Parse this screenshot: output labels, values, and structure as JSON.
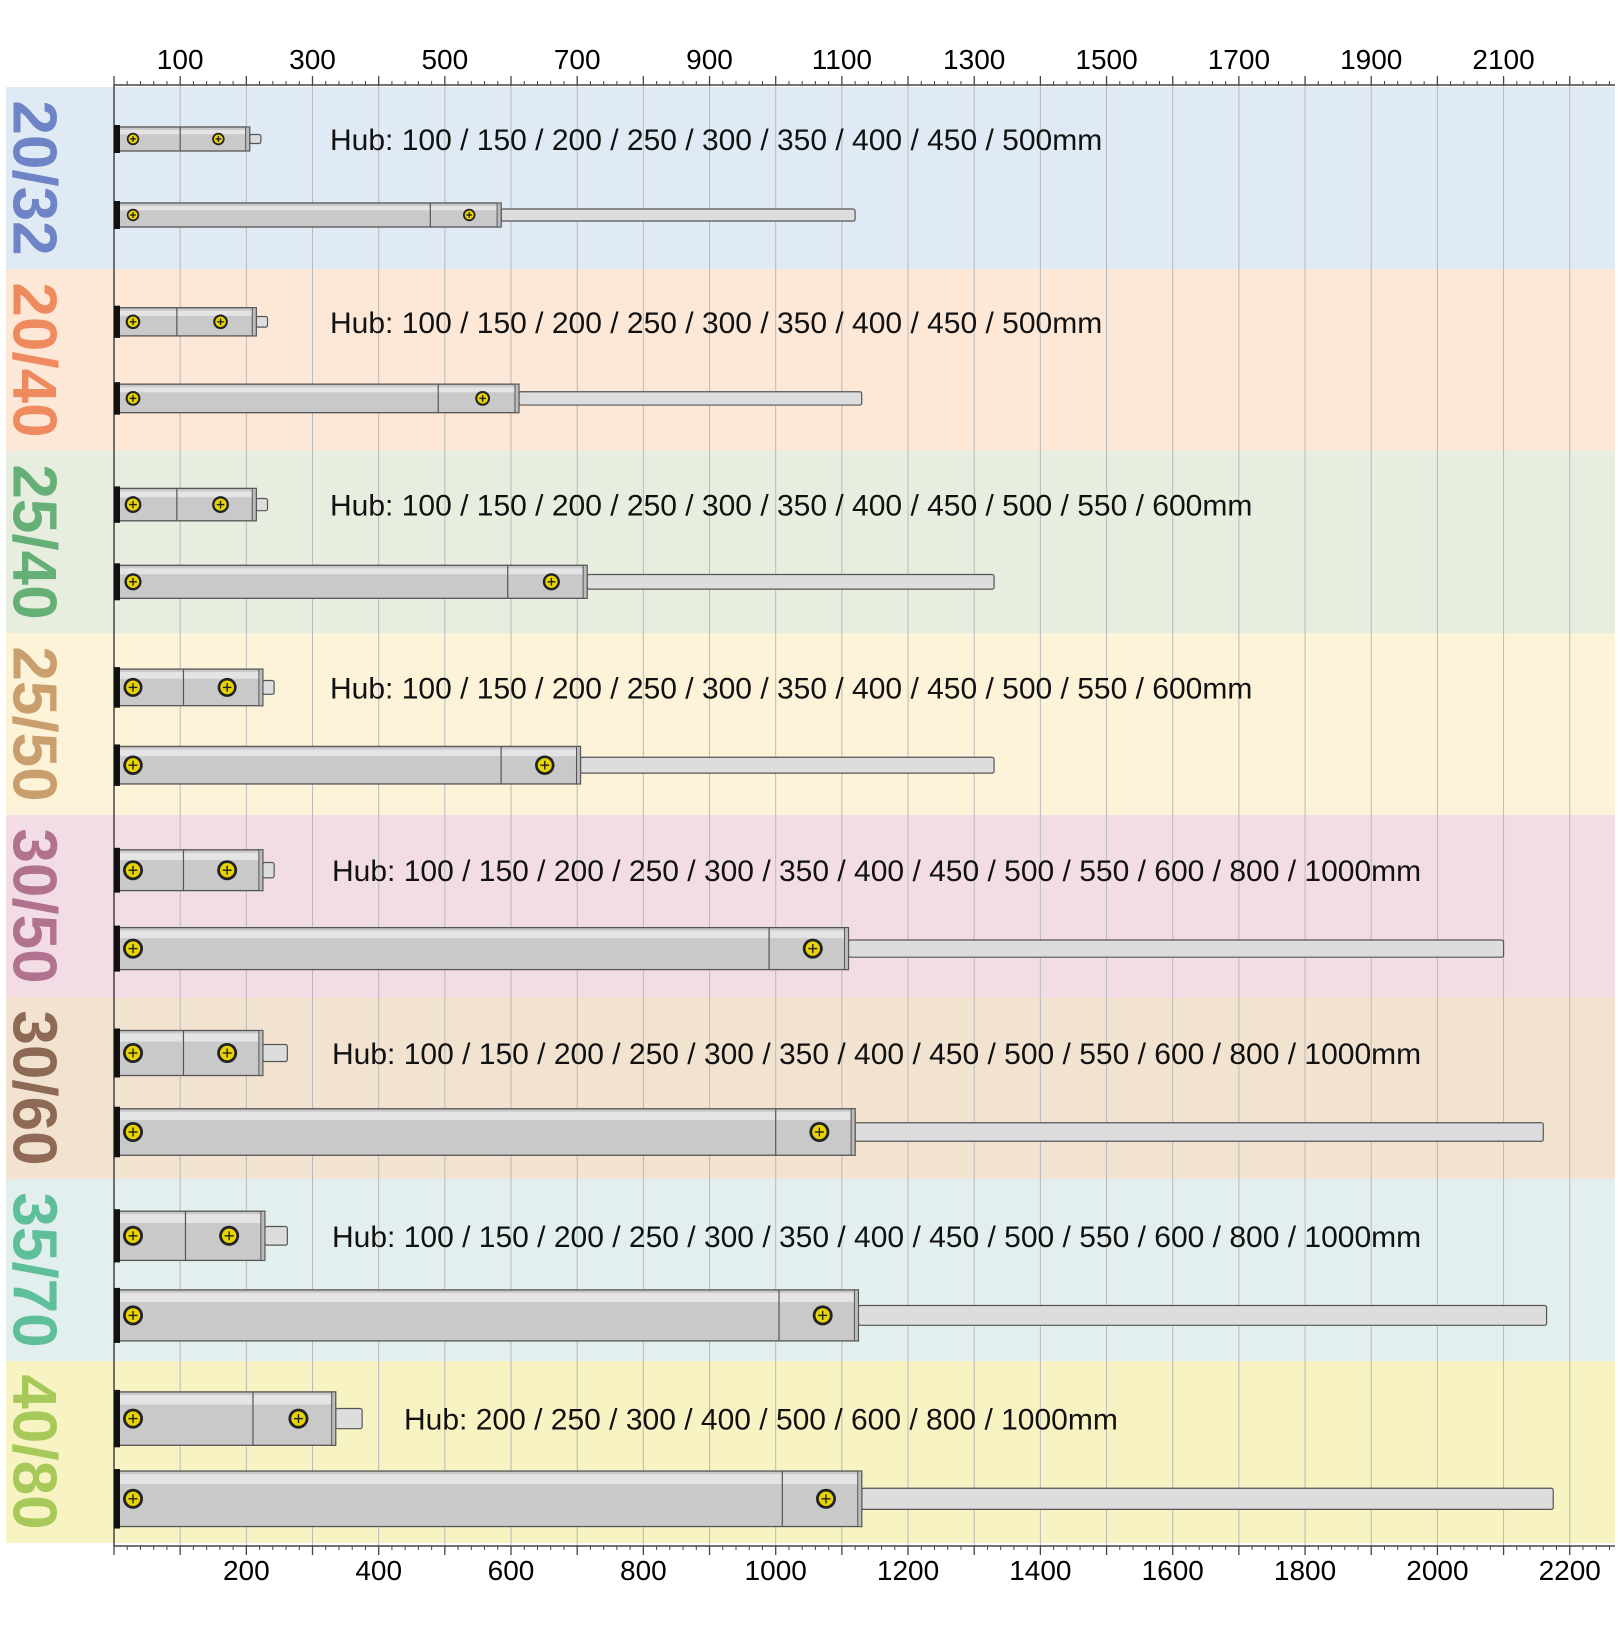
{
  "axis": {
    "unit": "mm",
    "top_ticks": [
      "100",
      "300",
      "500",
      "700",
      "900",
      "1100",
      "1300",
      "1500",
      "1700",
      "1900",
      "2100"
    ],
    "bottom_ticks": [
      "200",
      "400",
      "600",
      "800",
      "1000",
      "1200",
      "1400",
      "1600",
      "1800",
      "2000",
      "2200"
    ],
    "top_tick_values": [
      100,
      300,
      500,
      700,
      900,
      1100,
      1300,
      1500,
      1700,
      1900,
      2100
    ],
    "bottom_tick_values": [
      200,
      400,
      600,
      800,
      1000,
      1200,
      1400,
      1600,
      1800,
      2000,
      2200
    ],
    "range": [
      0,
      2270
    ]
  },
  "colors": {
    "axis_line": "#444444",
    "grid_line": "#b9b9b9",
    "tube": "#c9c9c9",
    "tube_outline": "#555555",
    "rod": "#dddddd",
    "screw": "#e8d400"
  },
  "models": [
    {
      "label": "20/32",
      "band_color": "#dfeaf5",
      "label_color": "#6f84c6",
      "hub_text": "Hub: 100 / 150 / 200 / 250 / 300 / 350 / 400 / 450 / 500mm",
      "short": {
        "body_end": 205,
        "collar_start": 100,
        "rod_end": 222
      },
      "long": {
        "body_end": 585,
        "collar_start": 478,
        "rod_end": 1120
      }
    },
    {
      "label": "20/40",
      "band_color": "#fde8d8",
      "label_color": "#ef8a5e",
      "hub_text": "Hub: 100 / 150 / 200 / 250 / 300 / 350 / 400 / 450 / 500mm",
      "short": {
        "body_end": 215,
        "collar_start": 95,
        "rod_end": 232
      },
      "long": {
        "body_end": 612,
        "collar_start": 490,
        "rod_end": 1130
      }
    },
    {
      "label": "25/40",
      "band_color": "#e7eedf",
      "label_color": "#64b077",
      "hub_text": "Hub: 100 / 150 / 200 / 250 / 300 / 350 / 400 / 450 / 500 / 550 / 600mm",
      "short": {
        "body_end": 215,
        "collar_start": 95,
        "rod_end": 232
      },
      "long": {
        "body_end": 715,
        "collar_start": 595,
        "rod_end": 1330
      }
    },
    {
      "label": "25/50",
      "band_color": "#fdf3d8",
      "label_color": "#c9a06d",
      "hub_text": "Hub: 100 / 150 / 200 / 250 / 300 / 350 / 400 / 450 / 500 / 550 / 600mm",
      "short": {
        "body_end": 225,
        "collar_start": 105,
        "rod_end": 242
      },
      "long": {
        "body_end": 705,
        "collar_start": 585,
        "rod_end": 1330
      }
    },
    {
      "label": "30/50",
      "band_color": "#f2dde6",
      "label_color": "#b1728f",
      "hub_text": "Hub: 100 / 150 / 200 / 250 / 300 / 350 / 400 / 450 / 500 / 550 / 600 / 800 / 1000mm",
      "short": {
        "body_end": 225,
        "collar_start": 105,
        "rod_end": 242
      },
      "long": {
        "body_end": 1110,
        "collar_start": 990,
        "rod_end": 2100
      }
    },
    {
      "label": "30/60",
      "band_color": "#f1e3d0",
      "label_color": "#8e6a56",
      "hub_text": "Hub: 100 / 150 / 200 / 250 / 300 / 350 / 400 / 450 / 500 / 550 / 600 / 800 / 1000mm",
      "short": {
        "body_end": 225,
        "collar_start": 105,
        "rod_end": 262
      },
      "long": {
        "body_end": 1120,
        "collar_start": 1000,
        "rod_end": 2160
      }
    },
    {
      "label": "35/70",
      "band_color": "#e2efee",
      "label_color": "#5ebf9a",
      "hub_text": "Hub: 100 / 150 / 200 / 250 / 300 / 350 / 400 / 450 / 500 / 550 / 600 / 800 / 1000mm",
      "short": {
        "body_end": 228,
        "collar_start": 108,
        "rod_end": 262
      },
      "long": {
        "body_end": 1125,
        "collar_start": 1005,
        "rod_end": 2165
      }
    },
    {
      "label": "40/80",
      "band_color": "#f8f3c2",
      "label_color": "#a6c95a",
      "hub_text": "Hub: 200 / 250 / 300 / 400 / 500  / 600 / 800 / 1000mm",
      "short": {
        "body_end": 335,
        "collar_start": 210,
        "rod_end": 375
      },
      "long": {
        "body_end": 1130,
        "collar_start": 1010,
        "rod_end": 2175
      }
    }
  ]
}
